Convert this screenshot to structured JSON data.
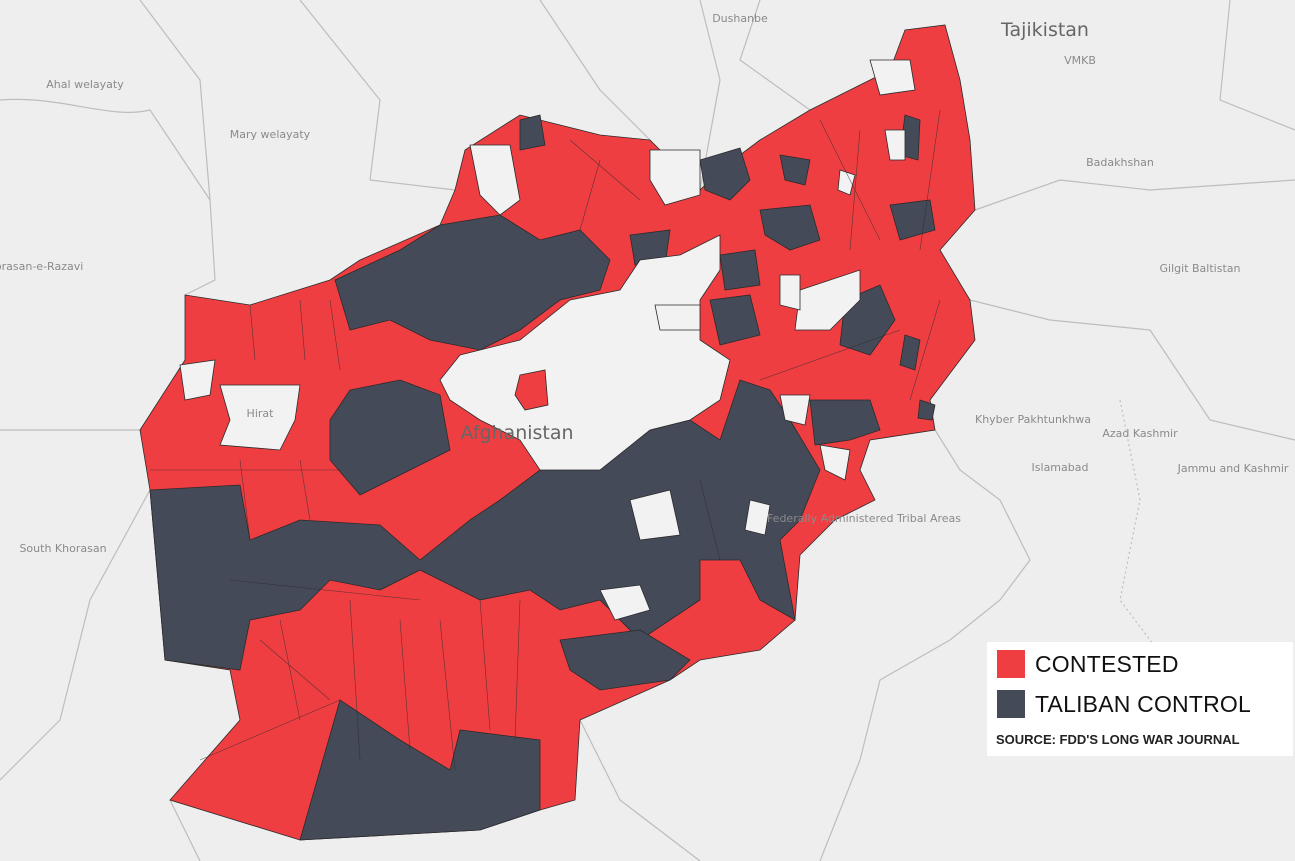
{
  "map": {
    "country_label": "Afghanistan",
    "region_labels": [
      {
        "text": "Tajikistan",
        "kind": "country"
      },
      {
        "text": "Dushanbe",
        "kind": "city"
      },
      {
        "text": "VMKB",
        "kind": "region"
      },
      {
        "text": "Ahal welayaty",
        "kind": "region"
      },
      {
        "text": "Mary welayaty",
        "kind": "region"
      },
      {
        "text": "Khorasan-e-Razavi",
        "kind": "region"
      },
      {
        "text": "Hirat",
        "kind": "city"
      },
      {
        "text": "South Khorasan",
        "kind": "region"
      },
      {
        "text": "Badakhshan",
        "kind": "region"
      },
      {
        "text": "Gilgit Baltistan",
        "kind": "region"
      },
      {
        "text": "Khyber Pakhtunkhwa",
        "kind": "region"
      },
      {
        "text": "Islamabad",
        "kind": "city"
      },
      {
        "text": "Azad Kashmir",
        "kind": "region"
      },
      {
        "text": "Jammu and Kashmir",
        "kind": "region"
      },
      {
        "text": "Federally Administered Tribal Areas",
        "kind": "region"
      }
    ],
    "colors": {
      "contested": "#ef3e42",
      "taliban_control": "#454a59",
      "government": "#f2f2f2",
      "background": "#eeeeee"
    }
  },
  "legend": {
    "items": [
      {
        "label": "CONTESTED",
        "color": "#ef3e42"
      },
      {
        "label": "TALIBAN CONTROL",
        "color": "#454a59"
      }
    ],
    "source": "SOURCE: FDD'S LONG WAR JOURNAL"
  }
}
